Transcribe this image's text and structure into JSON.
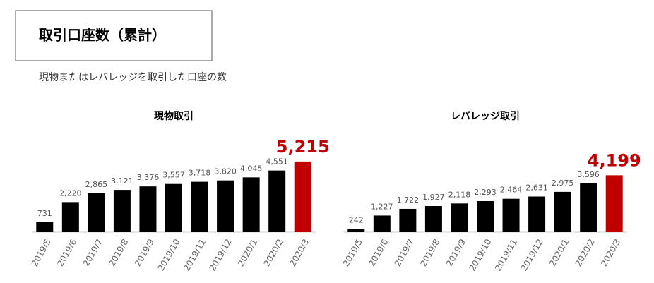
{
  "title": "取引口座数（累計）",
  "subtitle": "現物またはレバレッジを取引した口座の数",
  "chart_data": [
    {
      "type": "bar",
      "title": "現物取引",
      "categories": [
        "2019/5",
        "2019/6",
        "2019/7",
        "2019/8",
        "2019/9",
        "2019/10",
        "2019/11",
        "2019/12",
        "2020/1",
        "2020/2",
        "2020/3"
      ],
      "values": [
        731,
        2220,
        2865,
        3121,
        3376,
        3557,
        3718,
        3820,
        4045,
        4551,
        5215
      ],
      "value_labels": [
        "731",
        "2,220",
        "2,865",
        "3,121",
        "3,376",
        "3,557",
        "3,718",
        "3,820",
        "4,045",
        "4,551",
        "5,215"
      ],
      "colors": [
        "#000000",
        "#000000",
        "#000000",
        "#000000",
        "#000000",
        "#000000",
        "#000000",
        "#000000",
        "#000000",
        "#000000",
        "#c00000"
      ]
    },
    {
      "type": "bar",
      "title": "レバレッジ取引",
      "categories": [
        "2019/5",
        "2019/6",
        "2019/7",
        "2019/8",
        "2019/9",
        "2019/10",
        "2019/11",
        "2019/12",
        "2020/1",
        "2020/2",
        "2020/3"
      ],
      "values": [
        242,
        1227,
        1722,
        1927,
        2118,
        2293,
        2464,
        2631,
        2975,
        3596,
        4199
      ],
      "value_labels": [
        "242",
        "1,227",
        "1,722",
        "1,927",
        "2,118",
        "2,293",
        "2,464",
        "2,631",
        "2,975",
        "3,596",
        "4,199"
      ],
      "colors": [
        "#000000",
        "#000000",
        "#000000",
        "#000000",
        "#000000",
        "#000000",
        "#000000",
        "#000000",
        "#000000",
        "#000000",
        "#c00000"
      ]
    }
  ]
}
